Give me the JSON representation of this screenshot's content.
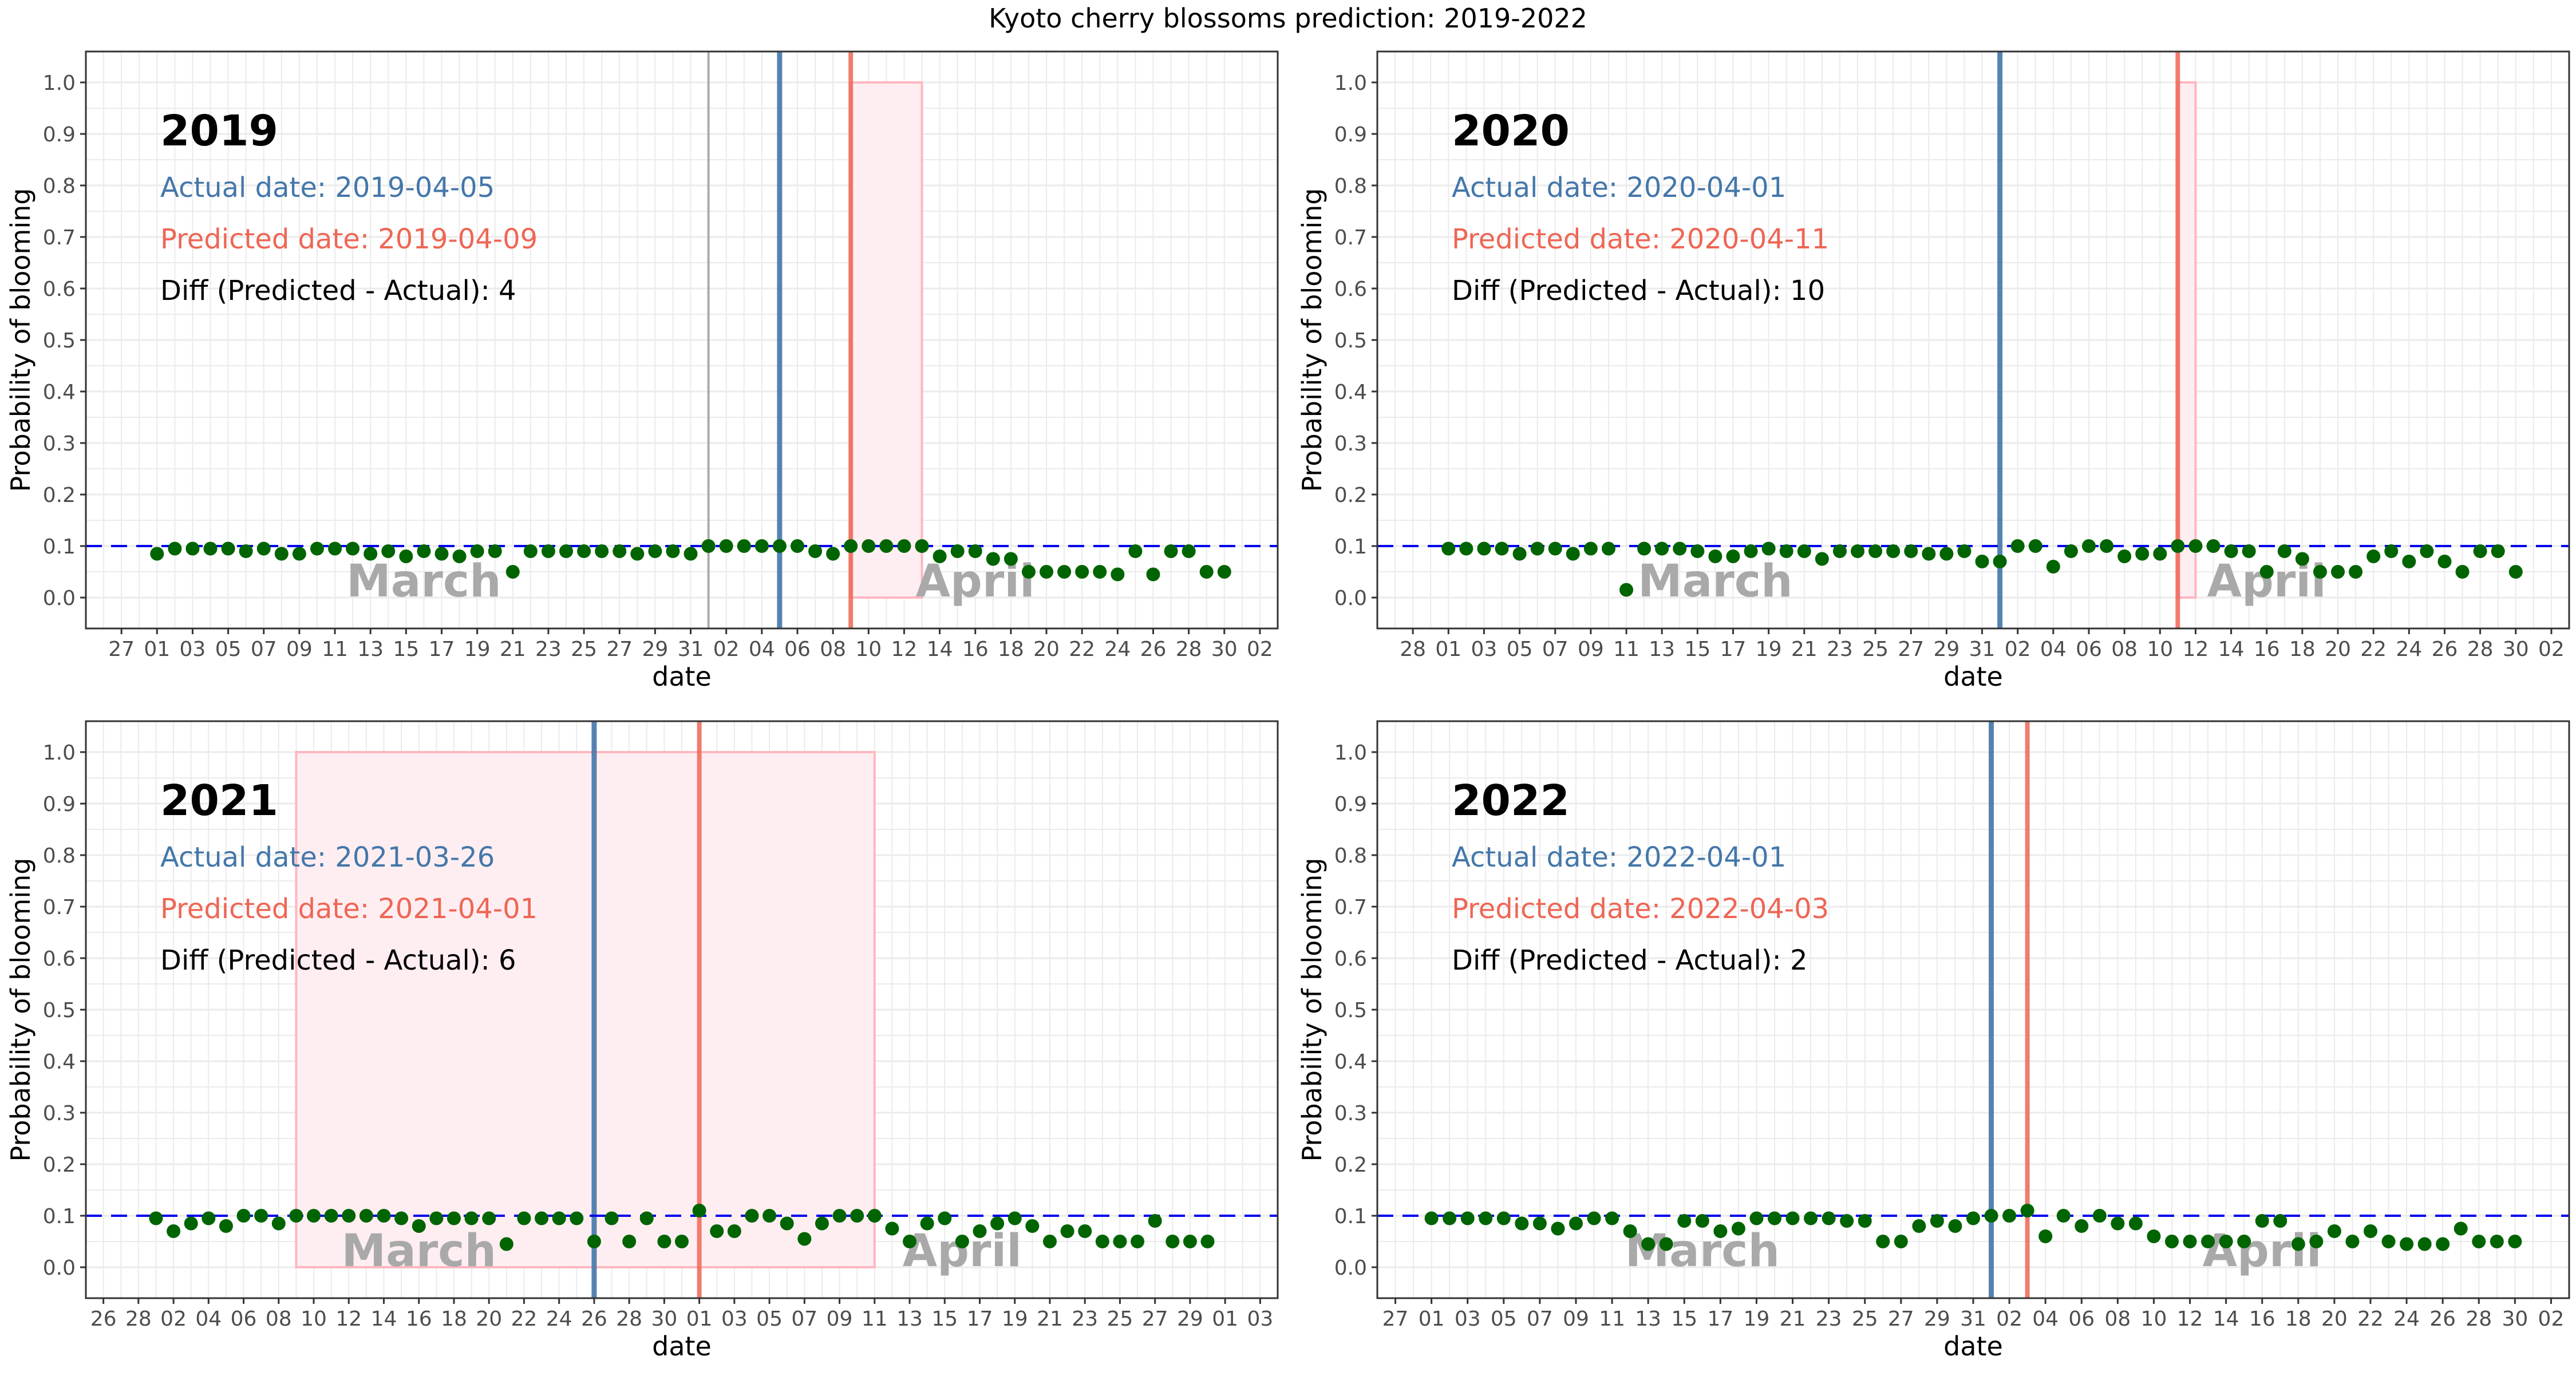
{
  "figure": {
    "title": "Kyoto cherry blossoms prediction: 2019-2022"
  },
  "colors": {
    "actual": "#4477aa",
    "predicted": "#ee6655",
    "points": "#006400",
    "threshold": "#0000ee",
    "interval_fill": "#ffeef1",
    "interval_stroke": "#ffb6c1",
    "month_label": "#a9a9a9",
    "grid": "#ebebeb"
  },
  "chart_data": [
    {
      "type": "scatter",
      "year_label": "2019",
      "actual_text": "Actual date: 2019-04-05",
      "predicted_text": "Predicted date: 2019-04-09",
      "diff_text": "Diff (Predicted - Actual): 4",
      "xlabel": "date",
      "ylabel": "Probability of blooming",
      "ylim": [
        0.0,
        1.0
      ],
      "yticks": [
        "0.0",
        "0.1",
        "0.2",
        "0.3",
        "0.4",
        "0.5",
        "0.6",
        "0.7",
        "0.8",
        "0.9",
        "1.0"
      ],
      "x_axis_start": "2019-02-25",
      "x_axis_end": "2019-05-03",
      "x_ticks": [
        "2019-02-27",
        "2019-03-01",
        "2019-03-03",
        "2019-03-05",
        "2019-03-07",
        "2019-03-09",
        "2019-03-11",
        "2019-03-13",
        "2019-03-15",
        "2019-03-17",
        "2019-03-19",
        "2019-03-21",
        "2019-03-23",
        "2019-03-25",
        "2019-03-27",
        "2019-03-29",
        "2019-03-31",
        "2019-04-02",
        "2019-04-04",
        "2019-04-06",
        "2019-04-08",
        "2019-04-10",
        "2019-04-12",
        "2019-04-14",
        "2019-04-16",
        "2019-04-18",
        "2019-04-20",
        "2019-04-22",
        "2019-04-24",
        "2019-04-26",
        "2019-04-28",
        "2019-04-30",
        "2019-05-02"
      ],
      "x_tick_labels": [
        "27",
        "01",
        "03",
        "05",
        "07",
        "09",
        "11",
        "13",
        "15",
        "17",
        "19",
        "21",
        "23",
        "25",
        "27",
        "29",
        "31",
        "02",
        "04",
        "06",
        "08",
        "10",
        "12",
        "14",
        "16",
        "18",
        "20",
        "22",
        "24",
        "26",
        "28",
        "30",
        "02"
      ],
      "month_labels": [
        {
          "text": "March",
          "date": "2019-03-16"
        },
        {
          "text": "April",
          "date": "2019-04-16"
        }
      ],
      "threshold": 0.1,
      "actual_date": "2019-04-05",
      "predicted_date": "2019-04-09",
      "interval": [
        "2019-04-09",
        "2019-04-13"
      ],
      "extra_vline": "2019-04-01",
      "x": [
        "2019-03-01",
        "2019-03-02",
        "2019-03-03",
        "2019-03-04",
        "2019-03-05",
        "2019-03-06",
        "2019-03-07",
        "2019-03-08",
        "2019-03-09",
        "2019-03-10",
        "2019-03-11",
        "2019-03-12",
        "2019-03-13",
        "2019-03-14",
        "2019-03-15",
        "2019-03-16",
        "2019-03-17",
        "2019-03-18",
        "2019-03-19",
        "2019-03-20",
        "2019-03-21",
        "2019-03-22",
        "2019-03-23",
        "2019-03-24",
        "2019-03-25",
        "2019-03-26",
        "2019-03-27",
        "2019-03-28",
        "2019-03-29",
        "2019-03-30",
        "2019-03-31",
        "2019-04-01",
        "2019-04-02",
        "2019-04-03",
        "2019-04-04",
        "2019-04-05",
        "2019-04-06",
        "2019-04-07",
        "2019-04-08",
        "2019-04-09",
        "2019-04-10",
        "2019-04-11",
        "2019-04-12",
        "2019-04-13",
        "2019-04-14",
        "2019-04-15",
        "2019-04-16",
        "2019-04-17",
        "2019-04-18",
        "2019-04-19",
        "2019-04-20",
        "2019-04-21",
        "2019-04-22",
        "2019-04-23",
        "2019-04-24",
        "2019-04-25",
        "2019-04-26",
        "2019-04-27",
        "2019-04-28",
        "2019-04-29",
        "2019-04-30"
      ],
      "y": [
        0.085,
        0.095,
        0.095,
        0.095,
        0.095,
        0.09,
        0.095,
        0.085,
        0.085,
        0.095,
        0.095,
        0.095,
        0.085,
        0.09,
        0.08,
        0.09,
        0.085,
        0.08,
        0.09,
        0.09,
        0.05,
        0.09,
        0.09,
        0.09,
        0.09,
        0.09,
        0.09,
        0.085,
        0.09,
        0.09,
        0.085,
        0.1,
        0.1,
        0.1,
        0.1,
        0.1,
        0.1,
        0.09,
        0.085,
        0.1,
        0.1,
        0.1,
        0.1,
        0.1,
        0.08,
        0.09,
        0.09,
        0.075,
        0.075,
        0.05,
        0.05,
        0.05,
        0.05,
        0.05,
        0.045,
        0.09,
        0.045,
        0.09,
        0.09,
        0.05,
        0.05
      ]
    },
    {
      "type": "scatter",
      "year_label": "2020",
      "actual_text": "Actual date: 2020-04-01",
      "predicted_text": "Predicted date: 2020-04-11",
      "diff_text": "Diff (Predicted - Actual): 10",
      "xlabel": "date",
      "ylabel": "Probability of blooming",
      "ylim": [
        0.0,
        1.0
      ],
      "yticks": [
        "0.0",
        "0.1",
        "0.2",
        "0.3",
        "0.4",
        "0.5",
        "0.6",
        "0.7",
        "0.8",
        "0.9",
        "1.0"
      ],
      "x_axis_start": "2020-02-26",
      "x_axis_end": "2020-05-03",
      "x_ticks": [
        "2020-02-28",
        "2020-03-01",
        "2020-03-03",
        "2020-03-05",
        "2020-03-07",
        "2020-03-09",
        "2020-03-11",
        "2020-03-13",
        "2020-03-15",
        "2020-03-17",
        "2020-03-19",
        "2020-03-21",
        "2020-03-23",
        "2020-03-25",
        "2020-03-27",
        "2020-03-29",
        "2020-03-31",
        "2020-04-02",
        "2020-04-04",
        "2020-04-06",
        "2020-04-08",
        "2020-04-10",
        "2020-04-12",
        "2020-04-14",
        "2020-04-16",
        "2020-04-18",
        "2020-04-20",
        "2020-04-22",
        "2020-04-24",
        "2020-04-26",
        "2020-04-28",
        "2020-04-30",
        "2020-05-02"
      ],
      "x_tick_labels": [
        "28",
        "01",
        "03",
        "05",
        "07",
        "09",
        "11",
        "13",
        "15",
        "17",
        "19",
        "21",
        "23",
        "25",
        "27",
        "29",
        "31",
        "02",
        "04",
        "06",
        "08",
        "10",
        "12",
        "14",
        "16",
        "18",
        "20",
        "22",
        "24",
        "26",
        "28",
        "30",
        "02"
      ],
      "month_labels": [
        {
          "text": "March",
          "date": "2020-03-16"
        },
        {
          "text": "April",
          "date": "2020-04-16"
        }
      ],
      "threshold": 0.1,
      "actual_date": "2020-04-01",
      "predicted_date": "2020-04-11",
      "interval": [
        "2020-04-11",
        "2020-04-12"
      ],
      "x": [
        "2020-03-01",
        "2020-03-02",
        "2020-03-03",
        "2020-03-04",
        "2020-03-05",
        "2020-03-06",
        "2020-03-07",
        "2020-03-08",
        "2020-03-09",
        "2020-03-10",
        "2020-03-11",
        "2020-03-12",
        "2020-03-13",
        "2020-03-14",
        "2020-03-15",
        "2020-03-16",
        "2020-03-17",
        "2020-03-18",
        "2020-03-19",
        "2020-03-20",
        "2020-03-21",
        "2020-03-22",
        "2020-03-23",
        "2020-03-24",
        "2020-03-25",
        "2020-03-26",
        "2020-03-27",
        "2020-03-28",
        "2020-03-29",
        "2020-03-30",
        "2020-03-31",
        "2020-04-01",
        "2020-04-02",
        "2020-04-03",
        "2020-04-04",
        "2020-04-05",
        "2020-04-06",
        "2020-04-07",
        "2020-04-08",
        "2020-04-09",
        "2020-04-10",
        "2020-04-11",
        "2020-04-12",
        "2020-04-13",
        "2020-04-14",
        "2020-04-15",
        "2020-04-16",
        "2020-04-17",
        "2020-04-18",
        "2020-04-19",
        "2020-04-20",
        "2020-04-21",
        "2020-04-22",
        "2020-04-23",
        "2020-04-24",
        "2020-04-25",
        "2020-04-26",
        "2020-04-27",
        "2020-04-28",
        "2020-04-29",
        "2020-04-30"
      ],
      "y": [
        0.095,
        0.095,
        0.095,
        0.095,
        0.085,
        0.095,
        0.095,
        0.085,
        0.095,
        0.095,
        0.015,
        0.095,
        0.095,
        0.095,
        0.09,
        0.08,
        0.08,
        0.09,
        0.095,
        0.09,
        0.09,
        0.075,
        0.09,
        0.09,
        0.09,
        0.09,
        0.09,
        0.085,
        0.085,
        0.09,
        0.07,
        0.07,
        0.1,
        0.1,
        0.06,
        0.09,
        0.1,
        0.1,
        0.08,
        0.085,
        0.085,
        0.1,
        0.1,
        0.1,
        0.09,
        0.09,
        0.05,
        0.09,
        0.075,
        0.05,
        0.05,
        0.05,
        0.08,
        0.09,
        0.07,
        0.09,
        0.07,
        0.05,
        0.09,
        0.09,
        0.05
      ]
    },
    {
      "type": "scatter",
      "year_label": "2021",
      "actual_text": "Actual date: 2021-03-26",
      "predicted_text": "Predicted date: 2021-04-01",
      "diff_text": "Diff (Predicted - Actual): 6",
      "xlabel": "date",
      "ylabel": "Probability of blooming",
      "ylim": [
        0.0,
        1.0
      ],
      "yticks": [
        "0.0",
        "0.1",
        "0.2",
        "0.3",
        "0.4",
        "0.5",
        "0.6",
        "0.7",
        "0.8",
        "0.9",
        "1.0"
      ],
      "x_axis_start": "2021-02-25",
      "x_axis_end": "2021-05-04",
      "x_ticks": [
        "2021-02-26",
        "2021-02-28",
        "2021-03-02",
        "2021-03-04",
        "2021-03-06",
        "2021-03-08",
        "2021-03-10",
        "2021-03-12",
        "2021-03-14",
        "2021-03-16",
        "2021-03-18",
        "2021-03-20",
        "2021-03-22",
        "2021-03-24",
        "2021-03-26",
        "2021-03-28",
        "2021-03-30",
        "2021-04-01",
        "2021-04-03",
        "2021-04-05",
        "2021-04-07",
        "2021-04-09",
        "2021-04-11",
        "2021-04-13",
        "2021-04-15",
        "2021-04-17",
        "2021-04-19",
        "2021-04-21",
        "2021-04-23",
        "2021-04-25",
        "2021-04-27",
        "2021-04-29",
        "2021-05-01",
        "2021-05-03"
      ],
      "x_tick_labels": [
        "26",
        "28",
        "02",
        "04",
        "06",
        "08",
        "10",
        "12",
        "14",
        "16",
        "18",
        "20",
        "22",
        "24",
        "26",
        "28",
        "30",
        "01",
        "03",
        "05",
        "07",
        "09",
        "11",
        "13",
        "15",
        "17",
        "19",
        "21",
        "23",
        "25",
        "27",
        "29",
        "01",
        "03"
      ],
      "month_labels": [
        {
          "text": "March",
          "date": "2021-03-16"
        },
        {
          "text": "April",
          "date": "2021-04-16"
        }
      ],
      "threshold": 0.1,
      "actual_date": "2021-03-26",
      "predicted_date": "2021-04-01",
      "interval": [
        "2021-03-09",
        "2021-04-11"
      ],
      "x": [
        "2021-03-01",
        "2021-03-02",
        "2021-03-03",
        "2021-03-04",
        "2021-03-05",
        "2021-03-06",
        "2021-03-07",
        "2021-03-08",
        "2021-03-09",
        "2021-03-10",
        "2021-03-11",
        "2021-03-12",
        "2021-03-13",
        "2021-03-14",
        "2021-03-15",
        "2021-03-16",
        "2021-03-17",
        "2021-03-18",
        "2021-03-19",
        "2021-03-20",
        "2021-03-21",
        "2021-03-22",
        "2021-03-23",
        "2021-03-24",
        "2021-03-25",
        "2021-03-26",
        "2021-03-27",
        "2021-03-28",
        "2021-03-29",
        "2021-03-30",
        "2021-03-31",
        "2021-04-01",
        "2021-04-02",
        "2021-04-03",
        "2021-04-04",
        "2021-04-05",
        "2021-04-06",
        "2021-04-07",
        "2021-04-08",
        "2021-04-09",
        "2021-04-10",
        "2021-04-11",
        "2021-04-12",
        "2021-04-13",
        "2021-04-14",
        "2021-04-15",
        "2021-04-16",
        "2021-04-17",
        "2021-04-18",
        "2021-04-19",
        "2021-04-20",
        "2021-04-21",
        "2021-04-22",
        "2021-04-23",
        "2021-04-24",
        "2021-04-25",
        "2021-04-26",
        "2021-04-27",
        "2021-04-28",
        "2021-04-29",
        "2021-04-30"
      ],
      "y": [
        0.095,
        0.07,
        0.085,
        0.095,
        0.08,
        0.1,
        0.1,
        0.085,
        0.1,
        0.1,
        0.1,
        0.1,
        0.1,
        0.1,
        0.095,
        0.08,
        0.095,
        0.095,
        0.095,
        0.095,
        0.045,
        0.095,
        0.095,
        0.095,
        0.095,
        0.05,
        0.095,
        0.05,
        0.095,
        0.05,
        0.05,
        0.11,
        0.07,
        0.07,
        0.1,
        0.1,
        0.085,
        0.055,
        0.085,
        0.1,
        0.1,
        0.1,
        0.075,
        0.05,
        0.085,
        0.095,
        0.05,
        0.07,
        0.085,
        0.095,
        0.08,
        0.05,
        0.07,
        0.07,
        0.05,
        0.05,
        0.05,
        0.09,
        0.05,
        0.05,
        0.05
      ]
    },
    {
      "type": "scatter",
      "year_label": "2022",
      "actual_text": "Actual date: 2022-04-01",
      "predicted_text": "Predicted date: 2022-04-03",
      "diff_text": "Diff (Predicted - Actual): 2",
      "xlabel": "date",
      "ylabel": "Probability of blooming",
      "ylim": [
        0.0,
        1.0
      ],
      "yticks": [
        "0.0",
        "0.1",
        "0.2",
        "0.3",
        "0.4",
        "0.5",
        "0.6",
        "0.7",
        "0.8",
        "0.9",
        "1.0"
      ],
      "x_axis_start": "2022-02-26",
      "x_axis_end": "2022-05-03",
      "x_ticks": [
        "2022-02-27",
        "2022-03-01",
        "2022-03-03",
        "2022-03-05",
        "2022-03-07",
        "2022-03-09",
        "2022-03-11",
        "2022-03-13",
        "2022-03-15",
        "2022-03-17",
        "2022-03-19",
        "2022-03-21",
        "2022-03-23",
        "2022-03-25",
        "2022-03-27",
        "2022-03-29",
        "2022-03-31",
        "2022-04-02",
        "2022-04-04",
        "2022-04-06",
        "2022-04-08",
        "2022-04-10",
        "2022-04-12",
        "2022-04-14",
        "2022-04-16",
        "2022-04-18",
        "2022-04-20",
        "2022-04-22",
        "2022-04-24",
        "2022-04-26",
        "2022-04-28",
        "2022-04-30",
        "2022-05-02"
      ],
      "x_tick_labels": [
        "27",
        "01",
        "03",
        "05",
        "07",
        "09",
        "11",
        "13",
        "15",
        "17",
        "19",
        "21",
        "23",
        "25",
        "27",
        "29",
        "31",
        "02",
        "04",
        "06",
        "08",
        "10",
        "12",
        "14",
        "16",
        "18",
        "20",
        "22",
        "24",
        "26",
        "28",
        "30",
        "02"
      ],
      "month_labels": [
        {
          "text": "March",
          "date": "2022-03-16"
        },
        {
          "text": "April",
          "date": "2022-04-16"
        }
      ],
      "threshold": 0.1,
      "actual_date": "2022-04-01",
      "predicted_date": "2022-04-03",
      "interval": null,
      "x": [
        "2022-03-01",
        "2022-03-02",
        "2022-03-03",
        "2022-03-04",
        "2022-03-05",
        "2022-03-06",
        "2022-03-07",
        "2022-03-08",
        "2022-03-09",
        "2022-03-10",
        "2022-03-11",
        "2022-03-12",
        "2022-03-13",
        "2022-03-14",
        "2022-03-15",
        "2022-03-16",
        "2022-03-17",
        "2022-03-18",
        "2022-03-19",
        "2022-03-20",
        "2022-03-21",
        "2022-03-22",
        "2022-03-23",
        "2022-03-24",
        "2022-03-25",
        "2022-03-26",
        "2022-03-27",
        "2022-03-28",
        "2022-03-29",
        "2022-03-30",
        "2022-03-31",
        "2022-04-01",
        "2022-04-02",
        "2022-04-03",
        "2022-04-04",
        "2022-04-05",
        "2022-04-06",
        "2022-04-07",
        "2022-04-08",
        "2022-04-09",
        "2022-04-10",
        "2022-04-11",
        "2022-04-12",
        "2022-04-13",
        "2022-04-14",
        "2022-04-15",
        "2022-04-16",
        "2022-04-17",
        "2022-04-18",
        "2022-04-19",
        "2022-04-20",
        "2022-04-21",
        "2022-04-22",
        "2022-04-23",
        "2022-04-24",
        "2022-04-25",
        "2022-04-26",
        "2022-04-27",
        "2022-04-28",
        "2022-04-29",
        "2022-04-30"
      ],
      "y": [
        0.095,
        0.095,
        0.095,
        0.095,
        0.095,
        0.085,
        0.085,
        0.075,
        0.085,
        0.095,
        0.095,
        0.07,
        0.045,
        0.045,
        0.09,
        0.09,
        0.07,
        0.075,
        0.095,
        0.095,
        0.095,
        0.095,
        0.095,
        0.09,
        0.09,
        0.05,
        0.05,
        0.08,
        0.09,
        0.08,
        0.095,
        0.1,
        0.1,
        0.11,
        0.06,
        0.1,
        0.08,
        0.1,
        0.085,
        0.085,
        0.06,
        0.05,
        0.05,
        0.05,
        0.05,
        0.05,
        0.09,
        0.09,
        0.045,
        0.05,
        0.07,
        0.05,
        0.07,
        0.05,
        0.045,
        0.045,
        0.045,
        0.075,
        0.05,
        0.05,
        0.05
      ]
    }
  ]
}
